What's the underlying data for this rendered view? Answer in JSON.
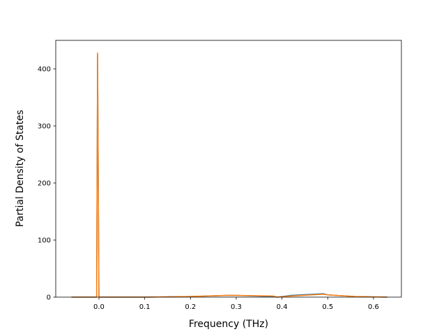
{
  "chart_data": {
    "type": "line",
    "xlabel": "Frequency (THz)",
    "ylabel": "Partial Density of States",
    "x": [
      -0.06,
      -0.005,
      -0.003,
      0.0,
      0.05,
      0.1,
      0.2,
      0.28,
      0.3,
      0.38,
      0.39,
      0.42,
      0.49,
      0.5,
      0.56,
      0.63
    ],
    "series": [
      {
        "color": "#1f77b4",
        "values": [
          0,
          0,
          425,
          0,
          0,
          0,
          1,
          3,
          3,
          1,
          0,
          3,
          6,
          4,
          1,
          0
        ]
      },
      {
        "color": "#ff7f0e",
        "values": [
          0,
          0,
          428,
          0,
          0,
          0,
          1,
          3,
          3,
          2,
          0,
          2,
          5,
          4,
          1,
          0
        ]
      }
    ],
    "xlim": [
      -0.0944,
      0.661
    ],
    "ylim": [
      0,
      450
    ],
    "xticks": [
      {
        "value": 0,
        "label": "0.0"
      },
      0.1,
      0.2,
      0.3,
      0.4,
      0.5,
      0.6
    ],
    "yticks": [
      0,
      100,
      200,
      300,
      400
    ]
  }
}
